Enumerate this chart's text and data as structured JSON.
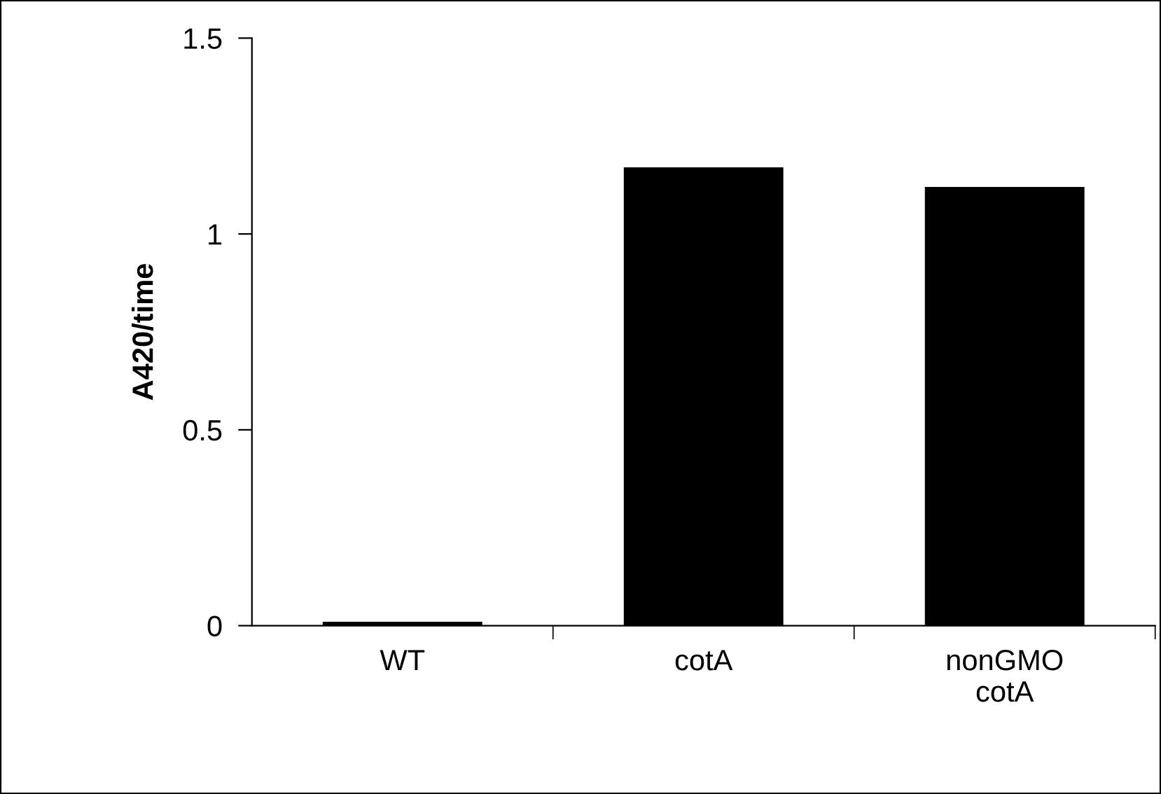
{
  "chart_data": {
    "type": "bar",
    "ylabel": "A420/time",
    "categories": [
      "WT",
      "cotA",
      "nonGMO\ncotA"
    ],
    "values": [
      0.01,
      1.17,
      1.12
    ],
    "color": "#000000",
    "ylim": [
      0,
      1.5
    ],
    "yticks": [
      0,
      {
        "value": 0.5,
        "label": "0.5"
      },
      1,
      1.5
    ],
    "grid": false
  }
}
